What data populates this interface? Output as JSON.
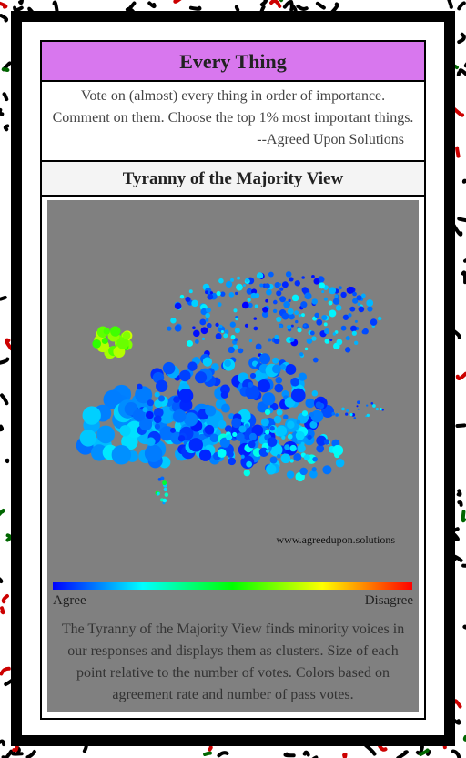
{
  "header": {
    "title": "Every Thing",
    "description": "Vote on (almost) every thing in order of importance. Comment on them. Choose the top 1% most important things.",
    "attribution": "--Agreed Upon Solutions"
  },
  "view": {
    "title": "Tyranny of the Majority View",
    "website": "www.agreedupon.solutions",
    "scale_low": "Agree",
    "scale_high": "Disagree",
    "caption": "The Tyranny of the Majority View finds minority voices in our responses and displays them as clusters. Size of each point relative to the number of votes. Colors based on agreement rate and number of pass votes."
  }
}
